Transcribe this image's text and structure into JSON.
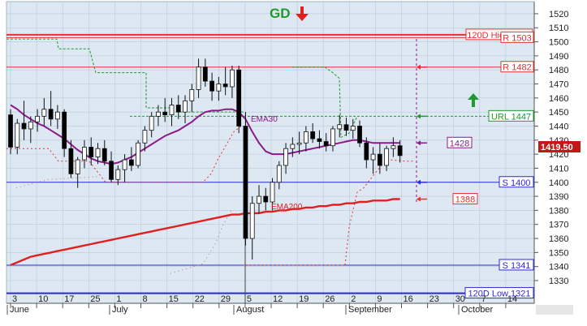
{
  "chart_data": {
    "type": "candlestick",
    "signal": {
      "label": "GD",
      "direction": "down"
    },
    "y_axis": {
      "min": 1320,
      "max": 1520,
      "step": 10,
      "ticks": [
        "1330",
        "1340",
        "1350",
        "1360",
        "1370",
        "1380",
        "1390",
        "1400",
        "1410",
        "1420",
        "1430",
        "1440",
        "1450",
        "1460",
        "1470",
        "1480",
        "1490",
        "1500",
        "1510",
        "1520"
      ]
    },
    "x_axis": {
      "day_ticks": [
        "3",
        "10",
        "17",
        "25",
        "1",
        "8",
        "15",
        "22",
        "29",
        "5",
        "12",
        "19",
        "26",
        "2",
        "9",
        "16",
        "23",
        "30",
        "7",
        "14"
      ],
      "months": [
        "June",
        "July",
        "August",
        "September",
        "October"
      ]
    },
    "current_price": "1419.50",
    "levels": [
      {
        "name": "120d-high",
        "label": "120D High 1505",
        "value": 1505
      },
      {
        "name": "r1503",
        "label": "R 1503",
        "value": 1503
      },
      {
        "name": "r1482",
        "label": "R 1482",
        "value": 1482
      },
      {
        "name": "url1447",
        "label": "URL 1447",
        "value": 1447
      },
      {
        "name": "ema30-marker",
        "label": "1428",
        "value": 1428
      },
      {
        "name": "s1400",
        "label": "S 1400",
        "value": 1400
      },
      {
        "name": "ema200-marker",
        "label": "1388",
        "value": 1388
      },
      {
        "name": "s1341",
        "label": "S 1341",
        "value": 1341
      },
      {
        "name": "120d-low",
        "label": "120D Low 1321",
        "value": 1321
      }
    ],
    "series_labels": {
      "ema30": "EMA30",
      "ema200": "EMA200"
    },
    "colors": {
      "resistance": "#e53030",
      "support": "#2a2ad0",
      "url": "#1e9a2e",
      "ema30": "#8a1a8a",
      "ema200": "#e02020",
      "candle_up": "#ffffff",
      "candle_down": "#000000",
      "background": "#dde8f3",
      "current_price_bg": "#c21818"
    },
    "candles": [
      [
        1448,
        1452,
        1420,
        1425
      ],
      [
        1425,
        1445,
        1420,
        1442
      ],
      [
        1442,
        1458,
        1430,
        1438
      ],
      [
        1438,
        1447,
        1428,
        1443
      ],
      [
        1443,
        1452,
        1436,
        1447
      ],
      [
        1447,
        1460,
        1440,
        1452
      ],
      [
        1452,
        1465,
        1440,
        1445
      ],
      [
        1445,
        1455,
        1438,
        1450
      ],
      [
        1450,
        1452,
        1418,
        1424
      ],
      [
        1424,
        1430,
        1403,
        1406
      ],
      [
        1406,
        1418,
        1396,
        1416
      ],
      [
        1416,
        1430,
        1410,
        1425
      ],
      [
        1425,
        1432,
        1412,
        1418
      ],
      [
        1418,
        1428,
        1413,
        1424
      ],
      [
        1424,
        1430,
        1412,
        1415
      ],
      [
        1415,
        1422,
        1400,
        1402
      ],
      [
        1402,
        1412,
        1398,
        1409
      ],
      [
        1409,
        1420,
        1400,
        1416
      ],
      [
        1416,
        1425,
        1408,
        1412
      ],
      [
        1412,
        1430,
        1410,
        1428
      ],
      [
        1428,
        1440,
        1422,
        1437
      ],
      [
        1437,
        1450,
        1432,
        1447
      ],
      [
        1447,
        1455,
        1440,
        1450
      ],
      [
        1450,
        1460,
        1443,
        1448
      ],
      [
        1448,
        1460,
        1440,
        1455
      ],
      [
        1455,
        1462,
        1445,
        1450
      ],
      [
        1450,
        1462,
        1442,
        1458
      ],
      [
        1458,
        1470,
        1450,
        1466
      ],
      [
        1466,
        1488,
        1460,
        1482
      ],
      [
        1482,
        1488,
        1468,
        1472
      ],
      [
        1472,
        1478,
        1458,
        1465
      ],
      [
        1465,
        1475,
        1458,
        1470
      ],
      [
        1470,
        1482,
        1462,
        1468
      ],
      [
        1468,
        1483,
        1460,
        1480
      ],
      [
        1480,
        1483,
        1435,
        1440
      ],
      [
        1440,
        1450,
        1355,
        1360
      ],
      [
        1360,
        1390,
        1345,
        1385
      ],
      [
        1385,
        1398,
        1378,
        1390
      ],
      [
        1390,
        1396,
        1380,
        1386
      ],
      [
        1386,
        1403,
        1380,
        1400
      ],
      [
        1400,
        1415,
        1395,
        1412
      ],
      [
        1412,
        1428,
        1406,
        1424
      ],
      [
        1424,
        1432,
        1418,
        1427
      ],
      [
        1427,
        1436,
        1420,
        1428
      ],
      [
        1428,
        1440,
        1422,
        1436
      ],
      [
        1436,
        1442,
        1428,
        1431
      ],
      [
        1431,
        1437,
        1424,
        1429
      ],
      [
        1429,
        1435,
        1422,
        1426
      ],
      [
        1426,
        1440,
        1422,
        1438
      ],
      [
        1438,
        1448,
        1432,
        1441
      ],
      [
        1441,
        1446,
        1433,
        1437
      ],
      [
        1437,
        1445,
        1431,
        1440
      ],
      [
        1440,
        1444,
        1425,
        1428
      ],
      [
        1428,
        1432,
        1410,
        1416
      ],
      [
        1416,
        1425,
        1406,
        1420
      ],
      [
        1420,
        1428,
        1406,
        1412
      ],
      [
        1412,
        1426,
        1408,
        1424
      ],
      [
        1424,
        1432,
        1418,
        1426
      ],
      [
        1426,
        1430,
        1414,
        1419
      ]
    ],
    "ema30_values": [
      1455,
      1452,
      1448,
      1445,
      1442,
      1440,
      1437,
      1434,
      1431,
      1427,
      1423,
      1420,
      1417,
      1415,
      1414,
      1413,
      1414,
      1416,
      1418,
      1421,
      1424,
      1427,
      1430,
      1433,
      1435,
      1437,
      1440,
      1443,
      1447,
      1450,
      1451,
      1451,
      1452,
      1452,
      1450,
      1445,
      1436,
      1428,
      1422,
      1420,
      1420,
      1420,
      1421,
      1422,
      1423,
      1424,
      1425,
      1426,
      1427,
      1428,
      1429,
      1430,
      1430,
      1429,
      1428,
      1428,
      1428,
      1428,
      1428
    ],
    "ema200_values": [
      1341,
      1343,
      1345,
      1347,
      1348,
      1349,
      1350,
      1351,
      1352,
      1353,
      1354,
      1355,
      1356,
      1357,
      1358,
      1359,
      1360,
      1361,
      1362,
      1363,
      1364,
      1365,
      1366,
      1367,
      1368,
      1369,
      1370,
      1371,
      1372,
      1373,
      1374,
      1375,
      1376,
      1377,
      1377,
      1378,
      1378,
      1378,
      1379,
      1379,
      1380,
      1380,
      1381,
      1381,
      1382,
      1382,
      1383,
      1383,
      1384,
      1384,
      1385,
      1385,
      1386,
      1386,
      1387,
      1387,
      1387,
      1388,
      1388
    ]
  }
}
